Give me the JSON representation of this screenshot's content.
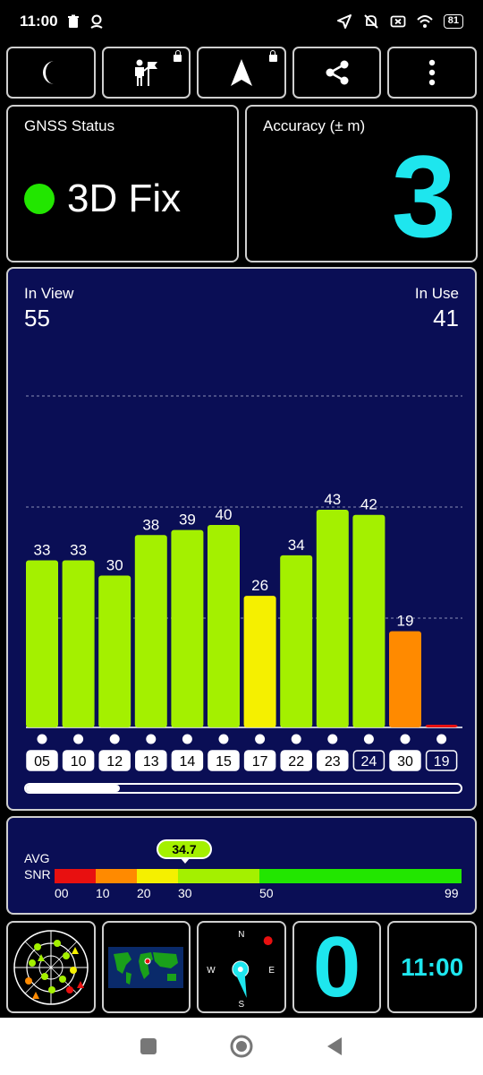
{
  "statusbar": {
    "time": "11:00",
    "battery": "81"
  },
  "toolbar": {
    "buttons": [
      {
        "icon": "moon-icon"
      },
      {
        "icon": "person-flag-icon",
        "locked": true
      },
      {
        "icon": "navigation-arrow-icon",
        "locked": true
      },
      {
        "icon": "share-icon"
      },
      {
        "icon": "more-vert-icon"
      }
    ]
  },
  "gnss_status": {
    "title": "GNSS Status",
    "fix": "3D Fix",
    "fix_color": "#22e600"
  },
  "accuracy": {
    "title": "Accuracy (± m)",
    "value": "3",
    "color": "#1ee6ee"
  },
  "satellites": {
    "in_view_label": "In View",
    "in_view": "55",
    "in_use_label": "In Use",
    "in_use": "41"
  },
  "chart_data": {
    "type": "bar",
    "categories": [
      "05",
      "10",
      "12",
      "13",
      "14",
      "15",
      "17",
      "22",
      "23",
      "24",
      "30",
      "19"
    ],
    "values": [
      33,
      33,
      30,
      38,
      39,
      40,
      26,
      34,
      43,
      42,
      19,
      0
    ],
    "colors": [
      "#a4f000",
      "#a4f000",
      "#a4f000",
      "#a4f000",
      "#a4f000",
      "#a4f000",
      "#f5f000",
      "#a4f000",
      "#a4f000",
      "#a4f000",
      "#ff8a00",
      "#e81010"
    ],
    "outlined_labels": [
      "24",
      "19"
    ],
    "value_labels_shown": [
      true,
      true,
      true,
      true,
      true,
      true,
      true,
      true,
      true,
      true,
      true,
      false
    ],
    "ylim": [
      0,
      45
    ],
    "grid": true
  },
  "snr": {
    "label_line1": "AVG",
    "label_line2": "SNR",
    "avg": "34.7",
    "ticks": [
      "00",
      "10",
      "20",
      "30",
      "50",
      "99"
    ],
    "segments": [
      {
        "from": 0,
        "to": 10,
        "color": "#e81010"
      },
      {
        "from": 10,
        "to": 20,
        "color": "#ff8a00"
      },
      {
        "from": 20,
        "to": 30,
        "color": "#f5f000"
      },
      {
        "from": 30,
        "to": 50,
        "color": "#a4f000"
      },
      {
        "from": 50,
        "to": 99,
        "color": "#22e600"
      }
    ]
  },
  "bottom_tiles": {
    "satellites_count": "0",
    "clock": "11:00"
  },
  "compass": {
    "n": "N",
    "s": "S",
    "e": "E",
    "w": "W"
  }
}
